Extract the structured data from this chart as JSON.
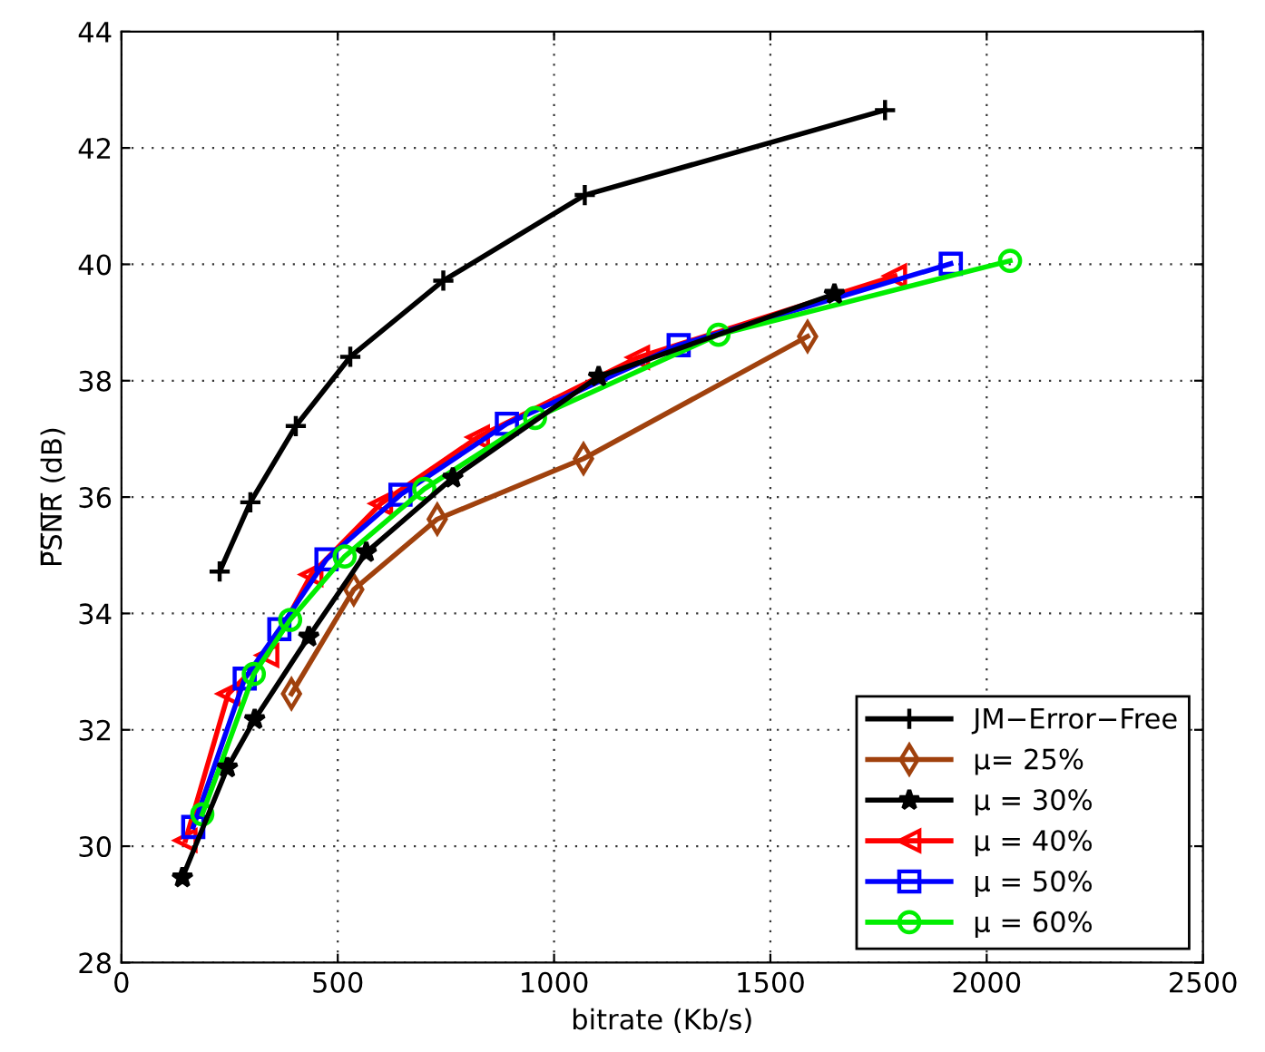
{
  "chart_data": {
    "type": "line",
    "xlabel": "bitrate (Kb/s)",
    "ylabel": "P̅S̅N̅R̅ (dB)",
    "xlim": [
      0,
      2500
    ],
    "xticks": [
      0,
      500,
      1000,
      1500,
      2000,
      2500
    ],
    "ylim": [
      28,
      44
    ],
    "yticks": [
      28,
      30,
      32,
      34,
      36,
      38,
      40,
      42,
      44
    ],
    "grid": true,
    "legend": "bottom right",
    "line_style": "solid",
    "series": [
      {
        "name": "JM−Error−Free",
        "color": "#000000",
        "marker": "cross",
        "x": [
          227,
          298,
          403,
          529,
          744,
          1071,
          1765
        ],
        "values": [
          34.72,
          35.91,
          37.22,
          38.41,
          39.72,
          41.19,
          42.65
        ]
      },
      {
        "name": "μ= 25%",
        "color": "#a0410d",
        "marker": "diamond",
        "x": [
          393,
          537,
          730,
          1068,
          1586
        ],
        "values": [
          32.62,
          34.41,
          35.62,
          36.66,
          38.76
        ]
      },
      {
        "name": "μ = 30%",
        "color": "#000000",
        "marker": "star",
        "x": [
          141,
          245,
          308,
          433,
          566,
          766,
          1103,
          1648
        ],
        "values": [
          29.46,
          31.35,
          32.18,
          33.6,
          35.05,
          36.33,
          38.07,
          39.49
        ]
      },
      {
        "name": "μ = 40%",
        "color": "#ff0000",
        "marker": "triangle",
        "x": [
          148,
          247,
          337,
          439,
          600,
          824,
          1194,
          1788
        ],
        "values": [
          30.1,
          32.62,
          33.28,
          34.67,
          35.89,
          37.03,
          38.4,
          39.8
        ]
      },
      {
        "name": "μ = 50%",
        "color": "#0000ff",
        "marker": "square",
        "x": [
          166,
          285,
          365,
          474,
          645,
          891,
          1288,
          1917
        ],
        "values": [
          30.33,
          32.88,
          33.73,
          34.93,
          36.04,
          37.26,
          38.61,
          40.01
        ]
      },
      {
        "name": "μ = 60%",
        "color": "#00ee00",
        "marker": "circle",
        "x": [
          187,
          306,
          390,
          516,
          700,
          956,
          1380,
          2054
        ],
        "values": [
          30.55,
          32.96,
          33.89,
          34.98,
          36.14,
          37.36,
          38.79,
          40.06
        ]
      }
    ]
  }
}
